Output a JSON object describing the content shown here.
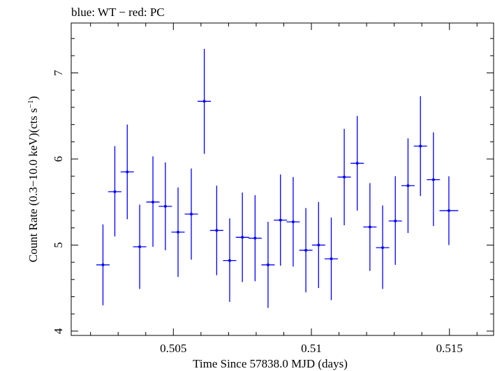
{
  "chart_data": {
    "type": "scatter",
    "title": "blue: WT − red: PC",
    "xlabel": "Time Since 57838.0 MJD (days)",
    "ylabel_main": "Count Rate (0.3−10.0 keV)(cts s",
    "ylabel_sup": "−1",
    "ylabel_end": ")",
    "xlim": [
      0.5013,
      0.5166
    ],
    "ylim": [
      3.95,
      7.58
    ],
    "x_ticks": [
      {
        "value": 0.505,
        "label": "0.505"
      },
      {
        "value": 0.51,
        "label": "0.51"
      },
      {
        "value": 0.515,
        "label": "0.515"
      }
    ],
    "y_ticks": [
      {
        "value": 4,
        "label": "4"
      },
      {
        "value": 5,
        "label": "5"
      },
      {
        "value": 6,
        "label": "6"
      },
      {
        "value": 7,
        "label": "7"
      }
    ],
    "series_color": "#0000ff",
    "points": [
      {
        "x": 0.50245,
        "xerr": 0.00024,
        "y": 4.77,
        "yerr_low": 0.47,
        "yerr_high": 0.47
      },
      {
        "x": 0.50288,
        "xerr": 0.00024,
        "y": 5.62,
        "yerr_low": 0.52,
        "yerr_high": 0.53
      },
      {
        "x": 0.50333,
        "xerr": 0.00024,
        "y": 5.85,
        "yerr_low": 0.55,
        "yerr_high": 0.55
      },
      {
        "x": 0.50378,
        "xerr": 0.00024,
        "y": 4.98,
        "yerr_low": 0.49,
        "yerr_high": 0.49
      },
      {
        "x": 0.50426,
        "xerr": 0.00024,
        "y": 5.5,
        "yerr_low": 0.52,
        "yerr_high": 0.53
      },
      {
        "x": 0.50471,
        "xerr": 0.00024,
        "y": 5.45,
        "yerr_low": 0.51,
        "yerr_high": 0.51
      },
      {
        "x": 0.50517,
        "xerr": 0.00024,
        "y": 5.15,
        "yerr_low": 0.52,
        "yerr_high": 0.52
      },
      {
        "x": 0.50565,
        "xerr": 0.00024,
        "y": 5.36,
        "yerr_low": 0.53,
        "yerr_high": 0.53
      },
      {
        "x": 0.50612,
        "xerr": 0.00024,
        "y": 6.67,
        "yerr_low": 0.61,
        "yerr_high": 0.61
      },
      {
        "x": 0.50657,
        "xerr": 0.00024,
        "y": 5.17,
        "yerr_low": 0.52,
        "yerr_high": 0.52
      },
      {
        "x": 0.50704,
        "xerr": 0.00024,
        "y": 4.82,
        "yerr_low": 0.48,
        "yerr_high": 0.49
      },
      {
        "x": 0.5075,
        "xerr": 0.00024,
        "y": 5.09,
        "yerr_low": 0.52,
        "yerr_high": 0.52
      },
      {
        "x": 0.50796,
        "xerr": 0.00024,
        "y": 5.08,
        "yerr_low": 0.5,
        "yerr_high": 0.5
      },
      {
        "x": 0.50843,
        "xerr": 0.00024,
        "y": 4.77,
        "yerr_low": 0.5,
        "yerr_high": 0.5
      },
      {
        "x": 0.50888,
        "xerr": 0.00024,
        "y": 5.29,
        "yerr_low": 0.53,
        "yerr_high": 0.53
      },
      {
        "x": 0.50934,
        "xerr": 0.00024,
        "y": 5.27,
        "yerr_low": 0.52,
        "yerr_high": 0.52
      },
      {
        "x": 0.5098,
        "xerr": 0.00024,
        "y": 4.94,
        "yerr_low": 0.49,
        "yerr_high": 0.49
      },
      {
        "x": 0.51026,
        "xerr": 0.00024,
        "y": 5.0,
        "yerr_low": 0.5,
        "yerr_high": 0.5
      },
      {
        "x": 0.51072,
        "xerr": 0.00024,
        "y": 4.84,
        "yerr_low": 0.48,
        "yerr_high": 0.48
      },
      {
        "x": 0.51119,
        "xerr": 0.00024,
        "y": 5.79,
        "yerr_low": 0.56,
        "yerr_high": 0.56
      },
      {
        "x": 0.51166,
        "xerr": 0.00024,
        "y": 5.95,
        "yerr_low": 0.55,
        "yerr_high": 0.55
      },
      {
        "x": 0.51212,
        "xerr": 0.00024,
        "y": 5.21,
        "yerr_low": 0.51,
        "yerr_high": 0.51
      },
      {
        "x": 0.51258,
        "xerr": 0.00024,
        "y": 4.97,
        "yerr_low": 0.48,
        "yerr_high": 0.49
      },
      {
        "x": 0.51304,
        "xerr": 0.00024,
        "y": 5.28,
        "yerr_low": 0.51,
        "yerr_high": 0.52
      },
      {
        "x": 0.5135,
        "xerr": 0.00024,
        "y": 5.69,
        "yerr_low": 0.55,
        "yerr_high": 0.55
      },
      {
        "x": 0.51395,
        "xerr": 0.00024,
        "y": 6.15,
        "yerr_low": 0.58,
        "yerr_high": 0.58
      },
      {
        "x": 0.51442,
        "xerr": 0.00024,
        "y": 5.76,
        "yerr_low": 0.54,
        "yerr_high": 0.55
      },
      {
        "x": 0.51498,
        "xerr": 0.00034,
        "y": 5.4,
        "yerr_low": 0.4,
        "yerr_high": 0.4
      }
    ]
  }
}
